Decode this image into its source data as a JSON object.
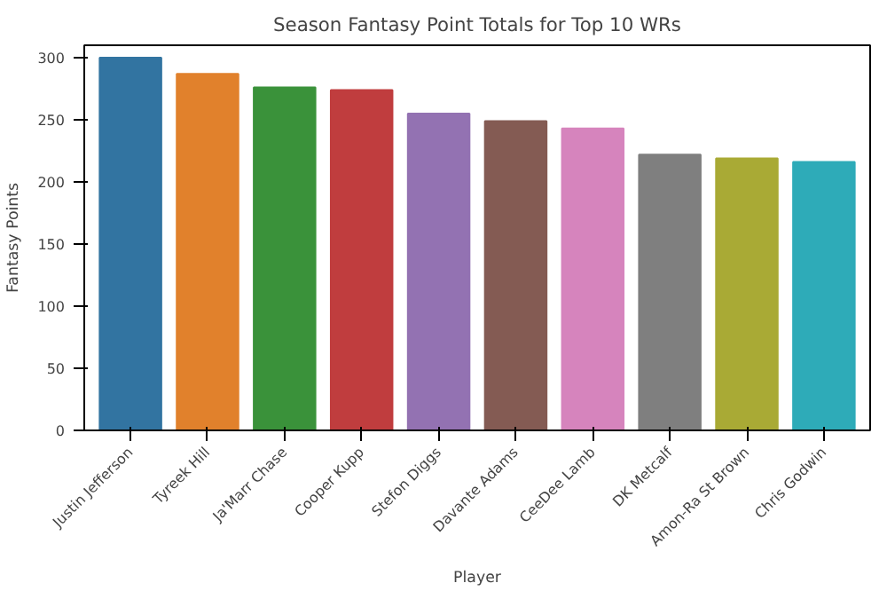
{
  "chart_data": {
    "type": "bar",
    "title": "Season Fantasy Point Totals for Top 10 WRs",
    "xlabel": "Player",
    "ylabel": "Fantasy Points",
    "categories": [
      "Justin Jefferson",
      "Tyreek Hill",
      "Ja'Marr Chase",
      "Cooper Kupp",
      "Stefon Diggs",
      "Davante Adams",
      "CeeDee Lamb",
      "DK Metcalf",
      "Amon-Ra St Brown",
      "Chris Godwin"
    ],
    "values": [
      300,
      287,
      276,
      274,
      255,
      249,
      243,
      222,
      219,
      216
    ],
    "colors": [
      "#3274a1",
      "#e1812c",
      "#3a923a",
      "#c03d3e",
      "#9372b2",
      "#845b53",
      "#d684bd",
      "#7f7f7f",
      "#a9aa35",
      "#2eabb8"
    ],
    "ylim": [
      0,
      310
    ],
    "yticks": [
      0,
      50,
      100,
      150,
      200,
      250,
      300
    ],
    "grid": false
  }
}
